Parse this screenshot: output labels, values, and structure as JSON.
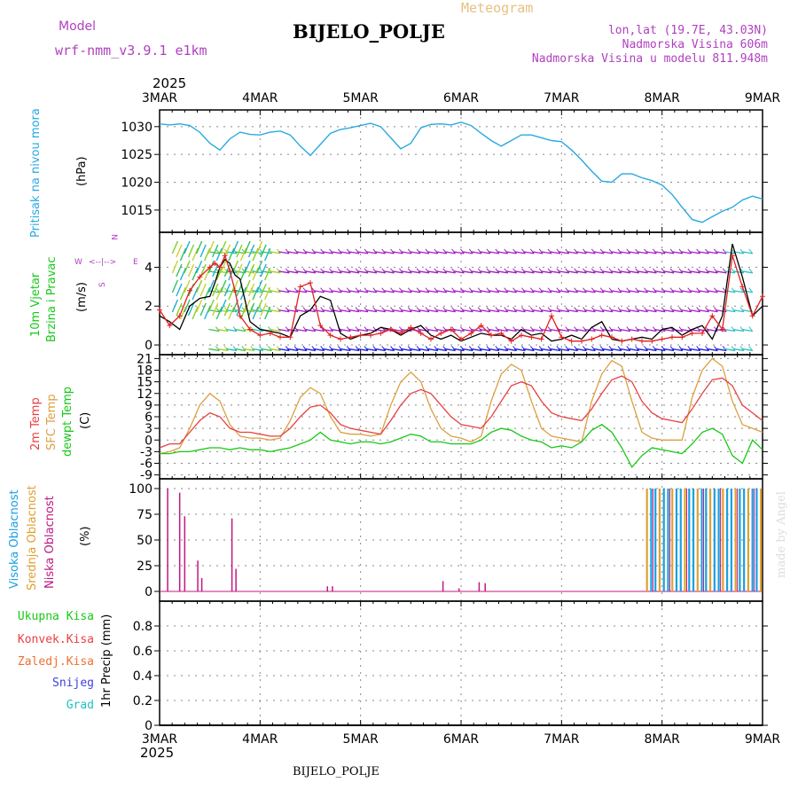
{
  "header": {
    "model_label": "Model",
    "model_name": "wrf-nmm_v3.9.1 e1km",
    "title": "BIJELO_POLJE",
    "product": "Meteogram",
    "lonlat": "lon,lat (19.7E, 43.03N)",
    "elevation": "Nadmorska Visina 606m",
    "model_elevation": "Nadmorska Visina u modelu 811.948m",
    "year_top": "2025",
    "year_bottom": "2025",
    "footer_station": "BIJELO_POLJE",
    "credit": "made by Angel"
  },
  "colors": {
    "pressure": "#29a9e0",
    "wind_speed": "#000000",
    "wind_gust": "#e02020",
    "temp2m": "#e84040",
    "sfc_temp": "#dca040",
    "dewpt": "#18c818",
    "high_cloud": "#1aa0e0",
    "mid_cloud": "#e0a030",
    "low_cloud": "#c01880",
    "purple_text": "#b040c0",
    "axis_text": "#000000"
  },
  "chart_data": [
    {
      "type": "line",
      "name": "pressure",
      "ylabel_left": "Pritisak na nivou mora",
      "ylabel_unit": "(hPa)",
      "x_ticks": [
        "3MAR",
        "4MAR",
        "5MAR",
        "6MAR",
        "7MAR",
        "8MAR",
        "9MAR"
      ],
      "ylim": [
        1011,
        1033
      ],
      "y_ticks": [
        1015,
        1020,
        1025,
        1030
      ],
      "grid": true,
      "x": [
        0,
        0.1,
        0.2,
        0.3,
        0.4,
        0.5,
        0.6,
        0.7,
        0.8,
        0.9,
        1.0,
        1.1,
        1.2,
        1.3,
        1.4,
        1.5,
        1.6,
        1.7,
        1.8,
        1.9,
        2.0,
        2.1,
        2.2,
        2.3,
        2.4,
        2.5,
        2.6,
        2.7,
        2.8,
        2.9,
        3.0,
        3.1,
        3.2,
        3.3,
        3.4,
        3.5,
        3.6,
        3.7,
        3.8,
        3.9,
        4.0,
        4.1,
        4.2,
        4.3,
        4.4,
        4.5,
        4.6,
        4.7,
        4.8,
        4.9,
        5.0,
        5.1,
        5.2,
        5.3,
        5.4,
        5.5,
        5.6,
        5.7,
        5.8,
        5.9,
        6.0
      ],
      "values": [
        1030.5,
        1030.3,
        1030.5,
        1030.2,
        1029.0,
        1027.0,
        1025.8,
        1027.8,
        1029.0,
        1028.6,
        1028.5,
        1029.0,
        1029.2,
        1028.5,
        1026.5,
        1024.8,
        1026.8,
        1028.8,
        1029.5,
        1029.8,
        1030.2,
        1030.6,
        1030.0,
        1028.0,
        1026.0,
        1027.0,
        1029.8,
        1030.4,
        1030.5,
        1030.3,
        1030.8,
        1030.2,
        1028.8,
        1027.5,
        1026.5,
        1027.5,
        1028.5,
        1028.5,
        1028.0,
        1027.5,
        1027.3,
        1025.8,
        1024.0,
        1022.0,
        1020.2,
        1020.0,
        1021.5,
        1021.5,
        1020.8,
        1020.3,
        1019.5,
        1017.8,
        1015.5,
        1013.3,
        1012.8,
        1013.8,
        1014.8,
        1015.5,
        1016.8,
        1017.5,
        1017.0
      ]
    },
    {
      "type": "line",
      "name": "wind",
      "ylabel_left": "10m Vjetar",
      "ylabel_left2": "Brzina i Pravac",
      "ylabel_unit": "(m/s)",
      "compass": {
        "n": "N",
        "e": "E",
        "w": "W",
        "s": "S"
      },
      "ylim": [
        -0.5,
        5.8
      ],
      "y_ticks": [
        0,
        2,
        4
      ],
      "grid": true,
      "series": [
        {
          "name": "speed",
          "x": [
            0,
            0.1,
            0.2,
            0.3,
            0.4,
            0.5,
            0.55,
            0.6,
            0.65,
            0.7,
            0.75,
            0.8,
            0.9,
            1.0,
            1.1,
            1.2,
            1.3,
            1.4,
            1.5,
            1.6,
            1.7,
            1.8,
            1.9,
            2.0,
            2.1,
            2.2,
            2.3,
            2.4,
            2.5,
            2.6,
            2.7,
            2.8,
            2.9,
            3.0,
            3.1,
            3.2,
            3.3,
            3.4,
            3.5,
            3.6,
            3.7,
            3.8,
            3.9,
            4.0,
            4.1,
            4.2,
            4.3,
            4.4,
            4.5,
            4.6,
            4.7,
            4.8,
            4.9,
            5.0,
            5.1,
            5.2,
            5.3,
            5.4,
            5.5,
            5.6,
            5.7,
            5.8,
            5.9,
            6.0
          ],
          "values": [
            1.5,
            1.2,
            0.8,
            2.0,
            2.4,
            2.5,
            3.2,
            4.0,
            4.4,
            4.2,
            3.6,
            3.4,
            1.2,
            0.8,
            0.7,
            0.6,
            0.4,
            1.5,
            1.8,
            2.5,
            2.3,
            0.6,
            0.3,
            0.5,
            0.6,
            0.9,
            0.8,
            0.5,
            0.8,
            1.0,
            0.5,
            0.3,
            0.5,
            0.2,
            0.4,
            0.6,
            0.5,
            0.5,
            0.3,
            0.8,
            0.5,
            0.6,
            0.2,
            0.3,
            0.5,
            0.3,
            0.9,
            1.2,
            0.3,
            0.2,
            0.3,
            0.4,
            0.3,
            0.8,
            0.9,
            0.5,
            0.8,
            1.0,
            0.3,
            1.5,
            5.2,
            3.5,
            1.5,
            2.0
          ]
        },
        {
          "name": "gust",
          "x": [
            0,
            0.1,
            0.2,
            0.3,
            0.4,
            0.5,
            0.55,
            0.6,
            0.65,
            0.7,
            0.75,
            0.8,
            0.9,
            1.0,
            1.1,
            1.2,
            1.3,
            1.4,
            1.5,
            1.6,
            1.7,
            1.8,
            1.9,
            2.0,
            2.1,
            2.2,
            2.3,
            2.4,
            2.5,
            2.6,
            2.7,
            2.8,
            2.9,
            3.0,
            3.1,
            3.2,
            3.3,
            3.4,
            3.5,
            3.6,
            3.7,
            3.8,
            3.9,
            4.0,
            4.1,
            4.2,
            4.3,
            4.4,
            4.5,
            4.6,
            4.7,
            4.8,
            4.9,
            5.0,
            5.1,
            5.2,
            5.3,
            5.4,
            5.5,
            5.6,
            5.7,
            5.8,
            5.9,
            6.0
          ],
          "values": [
            1.8,
            1.0,
            1.5,
            2.8,
            3.5,
            4.0,
            4.2,
            4.0,
            4.6,
            3.8,
            2.8,
            1.5,
            0.8,
            0.5,
            0.6,
            0.4,
            0.4,
            3.0,
            3.2,
            1.0,
            0.5,
            0.3,
            0.4,
            0.5,
            0.5,
            0.6,
            0.8,
            0.6,
            0.9,
            0.6,
            0.3,
            0.6,
            0.8,
            0.3,
            0.6,
            1.0,
            0.5,
            0.6,
            0.2,
            0.5,
            0.4,
            0.3,
            1.5,
            0.4,
            0.2,
            0.2,
            0.3,
            0.5,
            0.4,
            0.2,
            0.3,
            0.2,
            0.2,
            0.3,
            0.4,
            0.4,
            0.6,
            0.6,
            1.5,
            0.8,
            4.6,
            3.0,
            1.5,
            2.5
          ]
        }
      ]
    },
    {
      "type": "line",
      "name": "temperature",
      "ylabel_left": "2m Temp",
      "ylabel_left2": "SFC Temp",
      "ylabel_left3": "dewpt Temp",
      "ylabel_unit": "(C)",
      "ylim": [
        -10,
        22
      ],
      "y_ticks": [
        -9,
        -6,
        -3,
        0,
        3,
        6,
        9,
        12,
        15,
        18,
        21
      ],
      "grid": true,
      "series": [
        {
          "name": "2m",
          "x": [
            0,
            0.1,
            0.2,
            0.3,
            0.4,
            0.5,
            0.6,
            0.7,
            0.8,
            0.9,
            1.0,
            1.1,
            1.2,
            1.3,
            1.4,
            1.5,
            1.6,
            1.7,
            1.8,
            1.9,
            2.0,
            2.1,
            2.2,
            2.3,
            2.4,
            2.5,
            2.6,
            2.7,
            2.8,
            2.9,
            3.0,
            3.1,
            3.2,
            3.3,
            3.4,
            3.5,
            3.6,
            3.7,
            3.8,
            3.9,
            4.0,
            4.1,
            4.2,
            4.3,
            4.4,
            4.5,
            4.6,
            4.7,
            4.8,
            4.9,
            5.0,
            5.1,
            5.2,
            5.3,
            5.4,
            5.5,
            5.6,
            5.7,
            5.8,
            5.9,
            6.0
          ],
          "values": [
            -2,
            -1,
            -1,
            2,
            5,
            7,
            6,
            3,
            2,
            2,
            1.5,
            1,
            1,
            3,
            6,
            8.5,
            9,
            7,
            4,
            3,
            2.5,
            2,
            1.5,
            5,
            9,
            12,
            13,
            12,
            9,
            6,
            4,
            3.5,
            3,
            6,
            10,
            14,
            15,
            14,
            10,
            7,
            6,
            5.5,
            5,
            8,
            12,
            15.5,
            16.5,
            15,
            10,
            7,
            5.5,
            5,
            4.5,
            8,
            12,
            15.5,
            16,
            14,
            9,
            7,
            5
          ]
        },
        {
          "name": "sfc",
          "x": [
            0,
            0.1,
            0.2,
            0.3,
            0.4,
            0.5,
            0.6,
            0.7,
            0.8,
            0.9,
            1.0,
            1.1,
            1.2,
            1.3,
            1.4,
            1.5,
            1.6,
            1.7,
            1.8,
            1.9,
            2.0,
            2.1,
            2.2,
            2.3,
            2.4,
            2.5,
            2.6,
            2.7,
            2.8,
            2.9,
            3.0,
            3.1,
            3.2,
            3.3,
            3.4,
            3.5,
            3.6,
            3.7,
            3.8,
            3.9,
            4.0,
            4.1,
            4.2,
            4.3,
            4.4,
            4.5,
            4.6,
            4.7,
            4.8,
            4.9,
            5.0,
            5.1,
            5.2,
            5.3,
            5.4,
            5.5,
            5.6,
            5.7,
            5.8,
            5.9,
            6.0
          ],
          "values": [
            -3.5,
            -3,
            -2,
            3,
            9,
            12,
            10,
            4,
            1,
            0.5,
            0.5,
            0,
            0.5,
            5,
            11,
            13.5,
            12,
            6,
            2,
            1.5,
            1.5,
            1,
            1.5,
            9,
            15,
            17.5,
            15,
            8,
            3,
            1,
            0.5,
            -0.5,
            1,
            10,
            17,
            19.5,
            18,
            10,
            3,
            1,
            0.5,
            0,
            -0.5,
            10,
            17,
            20.5,
            19,
            10,
            2,
            0.5,
            0,
            0,
            0,
            11,
            18,
            21,
            19,
            10,
            4,
            3,
            2
          ]
        },
        {
          "name": "dewpt",
          "x": [
            0,
            0.1,
            0.2,
            0.3,
            0.4,
            0.5,
            0.6,
            0.7,
            0.8,
            0.9,
            1.0,
            1.1,
            1.2,
            1.3,
            1.4,
            1.5,
            1.6,
            1.7,
            1.8,
            1.9,
            2.0,
            2.1,
            2.2,
            2.3,
            2.4,
            2.5,
            2.6,
            2.7,
            2.8,
            2.9,
            3.0,
            3.1,
            3.2,
            3.3,
            3.4,
            3.5,
            3.6,
            3.7,
            3.8,
            3.9,
            4.0,
            4.1,
            4.2,
            4.3,
            4.4,
            4.5,
            4.6,
            4.7,
            4.8,
            4.9,
            5.0,
            5.1,
            5.2,
            5.3,
            5.4,
            5.5,
            5.6,
            5.7,
            5.8,
            5.9,
            6.0
          ],
          "values": [
            -3.5,
            -3.5,
            -3,
            -3,
            -2.5,
            -2,
            -2,
            -2.5,
            -2,
            -2.5,
            -2.5,
            -3,
            -2.5,
            -2,
            -1,
            0,
            2,
            0,
            -0.5,
            -1,
            -0.5,
            -0.5,
            -1,
            -0.5,
            0.5,
            1.5,
            1,
            -0.5,
            -0.5,
            -1,
            -1,
            -1,
            0,
            2,
            3,
            2.5,
            1,
            0,
            -0.5,
            -2,
            -1.5,
            -2,
            -0.5,
            2.5,
            4,
            2,
            -2,
            -7,
            -4,
            -2,
            -2.5,
            -3,
            -3.5,
            -1,
            2,
            3,
            1.5,
            -4,
            -6,
            0,
            -2.5
          ]
        }
      ]
    },
    {
      "type": "bar",
      "name": "cloud",
      "ylabel_left": "Visoka Oblacnost",
      "ylabel_left2": "Srednja Oblacnost",
      "ylabel_left3": "Niska Oblacnost",
      "ylabel_unit": "(%)",
      "ylim": [
        0,
        100
      ],
      "y_ticks": [
        0,
        25,
        50,
        75,
        100
      ],
      "grid": true,
      "low": {
        "x": [
          0.08,
          0.2,
          0.25,
          0.38,
          0.42,
          0.72,
          0.76,
          1.67,
          1.72,
          2.82,
          2.98,
          3.18,
          3.24
        ],
        "values": [
          100,
          96,
          73,
          30,
          13,
          71,
          22,
          5,
          5,
          10,
          3,
          9,
          8
        ]
      },
      "high_band": {
        "x_start": 4.85,
        "x_end": 5.99,
        "value": 100,
        "step": 0.042
      }
    },
    {
      "type": "line",
      "name": "precip",
      "ylabel_left": "Ukupna Kisa",
      "ylabel_left2": "Konvek.Kisa",
      "ylabel_left3": "Zaledj.Kisa",
      "ylabel_left4": "Snijeg",
      "ylabel_left5": "Grad",
      "ylabel_unit": "1hr Precip (mm)",
      "ylim": [
        0,
        1
      ],
      "y_ticks": [
        0,
        0.2,
        0.4,
        0.6,
        0.8
      ],
      "y_tick_labels": [
        "0",
        "0.2",
        "0.4",
        "0.6",
        "0.8"
      ],
      "grid": true,
      "values": []
    }
  ]
}
